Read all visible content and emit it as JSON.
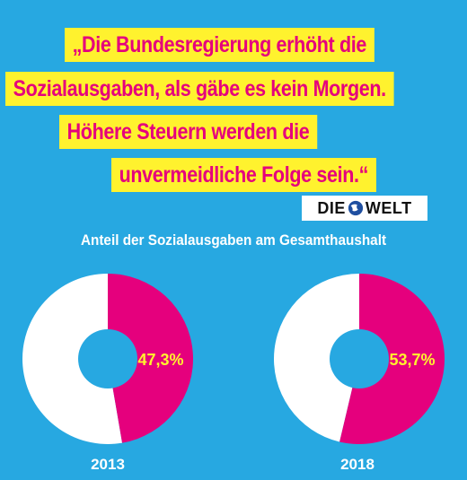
{
  "quote": {
    "lines": [
      "„Die Bundesregierung erhöht die",
      "Sozialausgaben, als gäbe es kein Morgen.",
      "Höhere Steuern werden die",
      "unvermeidliche Folge sein.“"
    ]
  },
  "source": {
    "logo_left": "DIE",
    "logo_right": "WELT",
    "logo_icon": "globe-icon"
  },
  "colors": {
    "background": "#27a8e1",
    "highlight": "#fff22e",
    "accent": "#e5007d",
    "rest": "#ffffff"
  },
  "chart_data": {
    "type": "pie",
    "title": "Anteil der Sozialausgaben am Gesamthaushalt",
    "charts": [
      {
        "label": "2013",
        "value": 47.3,
        "value_label": "47,3%"
      },
      {
        "label": "2018",
        "value": 53.7,
        "value_label": "53,7%"
      }
    ]
  }
}
